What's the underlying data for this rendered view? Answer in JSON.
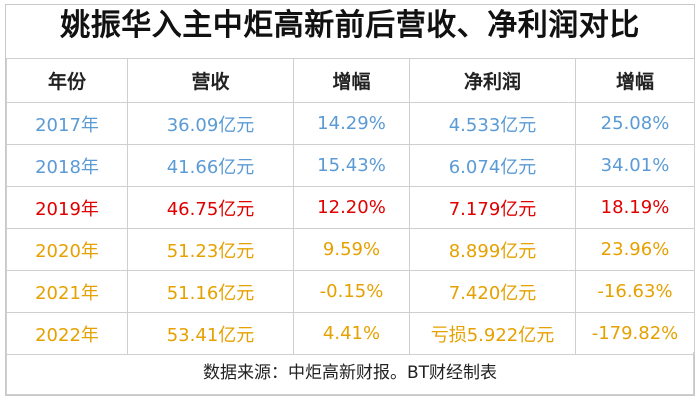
{
  "title": "姚振华入主中炬高新前后营收、净利润对比",
  "headers": [
    "年份",
    "营收",
    "增幅",
    "净利润",
    "增幅"
  ],
  "rows": [
    {
      "year": "2017年",
      "revenue": "36.09亿元",
      "revenue_growth": "14.29%",
      "net_profit": "4.533亿元",
      "profit_growth": "25.08%",
      "color": "#5b9bd5"
    },
    {
      "year": "2018年",
      "revenue": "41.66亿元",
      "revenue_growth": "15.43%",
      "net_profit": "6.074亿元",
      "profit_growth": "34.01%",
      "color": "#5b9bd5"
    },
    {
      "year": "2019年",
      "revenue": "46.75亿元",
      "revenue_growth": "12.20%",
      "net_profit": "7.179亿元",
      "profit_growth": "18.19%",
      "color": "#e00000"
    },
    {
      "year": "2020年",
      "revenue": "51.23亿元",
      "revenue_growth": "9.59%",
      "net_profit": "8.899亿元",
      "profit_growth": "23.96%",
      "color": "#e6a100"
    },
    {
      "year": "2021年",
      "revenue": "51.16亿元",
      "revenue_growth": "-0.15%",
      "net_profit": "7.420亿元",
      "profit_growth": "-16.63%",
      "color": "#e6a100"
    },
    {
      "year": "2022年",
      "revenue": "53.41亿元",
      "revenue_growth": "4.41%",
      "net_profit": "亏损5.922亿元",
      "profit_growth": "-179.82%",
      "color": "#e6a100"
    }
  ],
  "footer": "数据来源：中炬高新财报。BT财经制表"
}
